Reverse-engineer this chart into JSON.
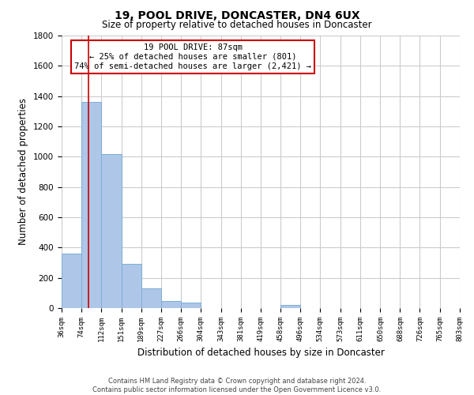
{
  "title": "19, POOL DRIVE, DONCASTER, DN4 6UX",
  "subtitle": "Size of property relative to detached houses in Doncaster",
  "xlabel": "Distribution of detached houses by size in Doncaster",
  "ylabel": "Number of detached properties",
  "bar_edges": [
    36,
    74,
    112,
    151,
    189,
    227,
    266,
    304,
    343,
    381,
    419,
    458,
    496,
    534,
    573,
    611,
    650,
    688,
    726,
    765,
    803
  ],
  "bar_heights": [
    360,
    1360,
    1020,
    290,
    130,
    45,
    35,
    0,
    0,
    0,
    0,
    20,
    0,
    0,
    0,
    0,
    0,
    0,
    0,
    0
  ],
  "bar_color": "#aec6e8",
  "bar_edgecolor": "#7bafd4",
  "ylim": [
    0,
    1800
  ],
  "yticks": [
    0,
    200,
    400,
    600,
    800,
    1000,
    1200,
    1400,
    1600,
    1800
  ],
  "property_line_x": 87,
  "property_line_color": "#cc0000",
  "annotation_title": "19 POOL DRIVE: 87sqm",
  "annotation_line1": "← 25% of detached houses are smaller (801)",
  "annotation_line2": "74% of semi-detached houses are larger (2,421) →",
  "annotation_box_color": "#cc0000",
  "tick_labels": [
    "36sqm",
    "74sqm",
    "112sqm",
    "151sqm",
    "189sqm",
    "227sqm",
    "266sqm",
    "304sqm",
    "343sqm",
    "381sqm",
    "419sqm",
    "458sqm",
    "496sqm",
    "534sqm",
    "573sqm",
    "611sqm",
    "650sqm",
    "688sqm",
    "726sqm",
    "765sqm",
    "803sqm"
  ],
  "footer_line1": "Contains HM Land Registry data © Crown copyright and database right 2024.",
  "footer_line2": "Contains public sector information licensed under the Open Government Licence v3.0.",
  "background_color": "#ffffff",
  "grid_color": "#cccccc",
  "figsize": [
    6.0,
    5.0
  ],
  "dpi": 100
}
